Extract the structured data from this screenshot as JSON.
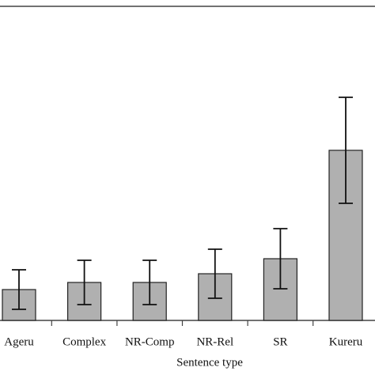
{
  "chart_data": {
    "type": "bar",
    "categories": [
      "Ageru",
      "Complex",
      "NR-Comp",
      "NR-Rel",
      "SR",
      "Kureru"
    ],
    "values": [
      39,
      48,
      48,
      59,
      78,
      215
    ],
    "errors": [
      25,
      28,
      28,
      31,
      38,
      67
    ],
    "color": "#b0b0b0",
    "x_label": "Sentence type",
    "ylim": [
      0,
      397
    ]
  }
}
